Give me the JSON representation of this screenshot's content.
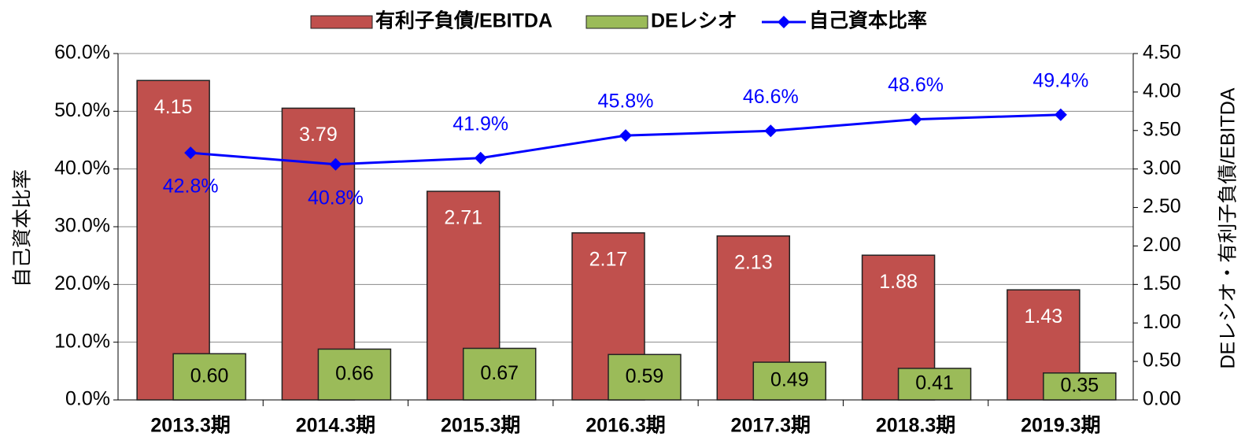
{
  "chart_data": {
    "type": "bar-line",
    "categories": [
      "2013.3期",
      "2014.3期",
      "2015.3期",
      "2016.3期",
      "2017.3期",
      "2018.3期",
      "2019.3期"
    ],
    "series": [
      {
        "name": "有利子負債/EBITDA",
        "type": "bar",
        "axis": "y2",
        "color": "#c0504d",
        "values": [
          4.15,
          3.79,
          2.71,
          2.17,
          2.13,
          1.88,
          1.43
        ],
        "value_labels": [
          "4.15",
          "3.79",
          "2.71",
          "2.17",
          "2.13",
          "1.88",
          "1.43"
        ]
      },
      {
        "name": "DEレシオ",
        "type": "bar",
        "axis": "y2",
        "color": "#9bbb59",
        "values": [
          0.6,
          0.66,
          0.67,
          0.59,
          0.49,
          0.41,
          0.35
        ],
        "value_labels": [
          "0.60",
          "0.66",
          "0.67",
          "0.59",
          "0.49",
          "0.41",
          "0.35"
        ]
      },
      {
        "name": "自己資本比率",
        "type": "line",
        "axis": "y",
        "color": "#0000ff",
        "values": [
          42.8,
          40.8,
          41.9,
          45.8,
          46.6,
          48.6,
          49.4
        ],
        "value_labels": [
          "42.8%",
          "40.8%",
          "41.9%",
          "45.8%",
          "46.6%",
          "48.6%",
          "49.4%"
        ]
      }
    ],
    "y_label": "自己資本比率",
    "y2_label": "DEレシオ・有利子負債/EBITDA",
    "ylim": [
      0,
      60
    ],
    "yticks": [
      {
        "value": 0,
        "label": "0.0%"
      },
      {
        "value": 10,
        "label": "10.0%"
      },
      {
        "value": 20,
        "label": "20.0%"
      },
      {
        "value": 30,
        "label": "30.0%"
      },
      {
        "value": 40,
        "label": "40.0%"
      },
      {
        "value": 50,
        "label": "50.0%"
      },
      {
        "value": 60,
        "label": "60.0%"
      }
    ],
    "y2lim": [
      0,
      4.5
    ],
    "y2ticks": [
      {
        "value": 0,
        "label": "0.00"
      },
      {
        "value": 0.5,
        "label": "0.50"
      },
      {
        "value": 1,
        "label": "1.00"
      },
      {
        "value": 1.5,
        "label": "1.50"
      },
      {
        "value": 2,
        "label": "2.00"
      },
      {
        "value": 2.5,
        "label": "2.50"
      },
      {
        "value": 3,
        "label": "3.00"
      },
      {
        "value": 3.5,
        "label": "3.50"
      },
      {
        "value": 4,
        "label": "4.00"
      },
      {
        "value": 4.5,
        "label": "4.50"
      }
    ],
    "grid": true,
    "legend": "top"
  }
}
